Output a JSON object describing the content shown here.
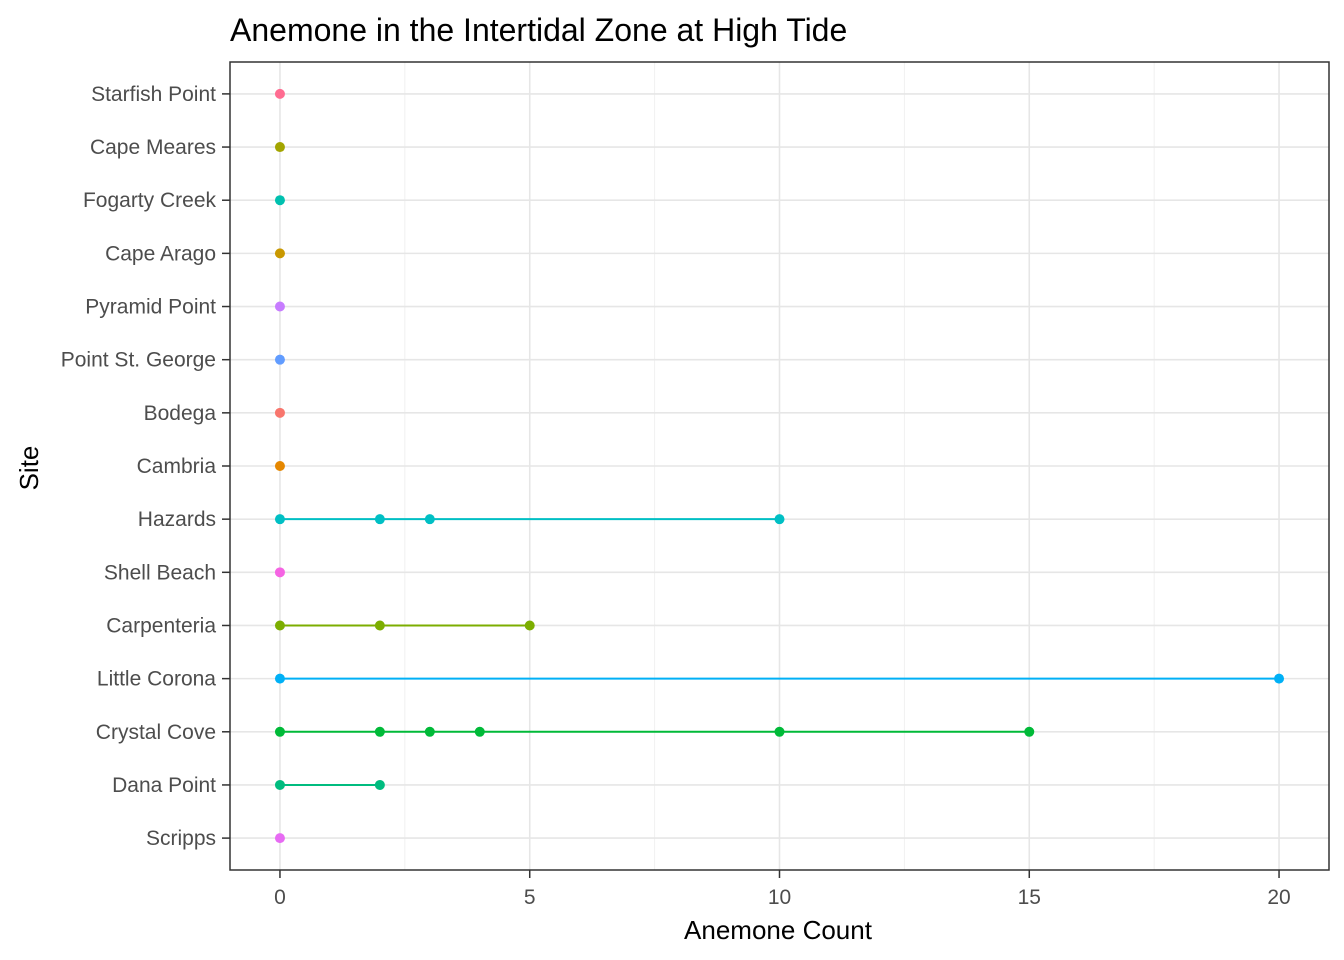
{
  "chart_data": {
    "type": "scatter",
    "title": "Anemone in the Intertidal Zone at High Tide",
    "xlabel": "Anemone Count",
    "ylabel": "Site",
    "xlim": [
      -1,
      21
    ],
    "x_ticks": [
      0,
      5,
      10,
      15,
      20
    ],
    "grid": true,
    "legend": "none",
    "categories": [
      "Scripps",
      "Dana Point",
      "Crystal Cove",
      "Little Corona",
      "Carpenteria",
      "Shell Beach",
      "Hazards",
      "Cambria",
      "Bodega",
      "Point St. George",
      "Pyramid Point",
      "Cape Arago",
      "Fogarty Creek",
      "Cape Meares",
      "Starfish Point"
    ],
    "series": [
      {
        "site": "Scripps",
        "color": "#e76bf3",
        "values": [
          0
        ]
      },
      {
        "site": "Dana Point",
        "color": "#00bc7f",
        "values": [
          0,
          2
        ]
      },
      {
        "site": "Crystal Cove",
        "color": "#00ba38",
        "values": [
          0,
          2,
          3,
          4,
          10,
          15
        ]
      },
      {
        "site": "Little Corona",
        "color": "#00b0f6",
        "values": [
          0,
          20
        ]
      },
      {
        "site": "Carpenteria",
        "color": "#7cae00",
        "values": [
          0,
          2,
          5
        ]
      },
      {
        "site": "Shell Beach",
        "color": "#f564e3",
        "values": [
          0
        ]
      },
      {
        "site": "Hazards",
        "color": "#00bfc4",
        "values": [
          0,
          2,
          3,
          10
        ]
      },
      {
        "site": "Cambria",
        "color": "#e58700",
        "values": [
          0
        ]
      },
      {
        "site": "Bodega",
        "color": "#f8766d",
        "values": [
          0
        ]
      },
      {
        "site": "Point St. George",
        "color": "#619cff",
        "values": [
          0
        ]
      },
      {
        "site": "Pyramid Point",
        "color": "#c77cff",
        "values": [
          0
        ]
      },
      {
        "site": "Cape Arago",
        "color": "#c99800",
        "values": [
          0
        ]
      },
      {
        "site": "Fogarty Creek",
        "color": "#00c0af",
        "values": [
          0
        ]
      },
      {
        "site": "Cape Meares",
        "color": "#a3a500",
        "values": [
          0
        ]
      },
      {
        "site": "Starfish Point",
        "color": "#ff6c91",
        "values": [
          0
        ]
      }
    ]
  }
}
